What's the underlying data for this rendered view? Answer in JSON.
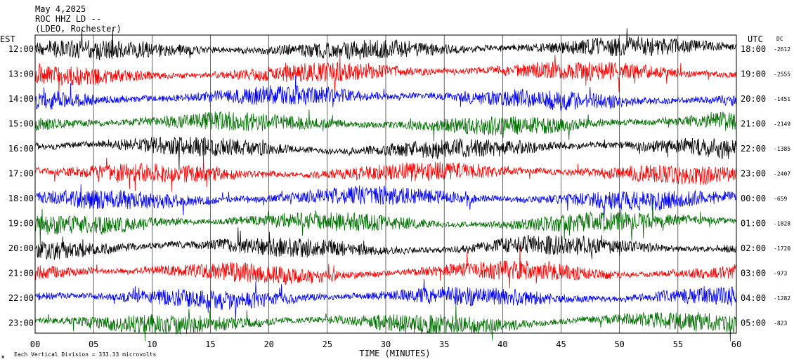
{
  "header": {
    "date": "May 4,2025",
    "station": "ROC HHZ LD --",
    "network": "(LDEO, Rochester)"
  },
  "footer": {
    "scale_note": "Each Vertical Division = 333.33 microvolts",
    "corner_mark": "ж"
  },
  "chart_data": {
    "type": "line",
    "title": "",
    "xlabel": "TIME (MINUTES)",
    "left_axis_label": "EST",
    "right_axis_label": "UTC",
    "dc_label": "DC",
    "xlim": [
      0,
      60
    ],
    "x_ticks": [
      "00",
      "05",
      "10",
      "15",
      "20",
      "25",
      "30",
      "35",
      "40",
      "45",
      "50",
      "55",
      "60"
    ],
    "trace_colors": [
      "#000000",
      "#ff0000",
      "#0000ff",
      "#007000"
    ],
    "rows": [
      {
        "est": "12:00",
        "utc": "18:00",
        "dc": "-2612",
        "color": "#000000"
      },
      {
        "est": "13:00",
        "utc": "19:00",
        "dc": "-2555",
        "color": "#ff0000"
      },
      {
        "est": "14:00",
        "utc": "20:00",
        "dc": "-1451",
        "color": "#0000ff"
      },
      {
        "est": "15:00",
        "utc": "21:00",
        "dc": "-2149",
        "color": "#007000"
      },
      {
        "est": "16:00",
        "utc": "22:00",
        "dc": "-1385",
        "color": "#000000"
      },
      {
        "est": "17:00",
        "utc": "23:00",
        "dc": "-2407",
        "color": "#ff0000"
      },
      {
        "est": "18:00",
        "utc": "00:00",
        "dc": "-659",
        "color": "#0000ff"
      },
      {
        "est": "19:00",
        "utc": "01:00",
        "dc": "-1828",
        "color": "#007000"
      },
      {
        "est": "20:00",
        "utc": "02:00",
        "dc": "-1720",
        "color": "#000000"
      },
      {
        "est": "21:00",
        "utc": "03:00",
        "dc": "-973",
        "color": "#ff0000"
      },
      {
        "est": "22:00",
        "utc": "04:00",
        "dc": "-1282",
        "color": "#0000ff"
      },
      {
        "est": "23:00",
        "utc": "05:00",
        "dc": "-823",
        "color": "#007000"
      }
    ]
  }
}
